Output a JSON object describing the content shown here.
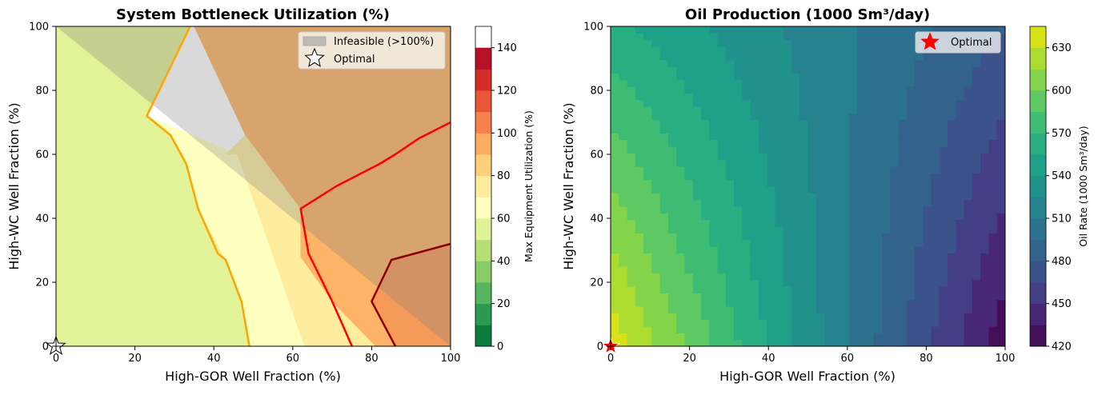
{
  "chart_data": [
    {
      "type": "contour",
      "title": "System Bottleneck Utilization (%)",
      "xlabel": "High-GOR Well Fraction (%)",
      "ylabel": "High-WC Well Fraction (%)",
      "xlim": [
        0,
        100
      ],
      "ylim": [
        0,
        100
      ],
      "xticks": [
        "0",
        "20",
        "40",
        "60",
        "80",
        "100"
      ],
      "yticks": [
        "0",
        "20",
        "40",
        "60",
        "80",
        "100"
      ],
      "colorbar": {
        "label": "Max Equipment Utilization (%)",
        "range": [
          0,
          150
        ],
        "ticks": [
          "0",
          "20",
          "40",
          "60",
          "80",
          "100",
          "120",
          "140"
        ],
        "levels": [
          0,
          10,
          20,
          30,
          40,
          50,
          60,
          70,
          80,
          90,
          100,
          110,
          120,
          130,
          140,
          150
        ],
        "colors": [
          "#0a7c3c",
          "#2a9a50",
          "#57b560",
          "#86cb67",
          "#b5df74",
          "#e0f296",
          "#ffffc0",
          "#feec9f",
          "#fed07a",
          "#fdad60",
          "#f7814c",
          "#e85637",
          "#d42d27",
          "#b7112a"
        ]
      },
      "regions": [
        {
          "level_range": [
            60,
            70
          ],
          "color": "#e2f397",
          "points": [
            [
              0,
              0
            ],
            [
              49,
              0
            ],
            [
              47,
              14
            ],
            [
              43,
              27
            ],
            [
              36,
              43
            ],
            [
              33,
              57
            ],
            [
              29,
              66
            ],
            [
              23,
              72
            ],
            [
              34,
              100
            ],
            [
              0,
              100
            ]
          ]
        },
        {
          "level_range": [
            70,
            80
          ],
          "color": "#ffffc0",
          "points": [
            [
              49,
              0
            ],
            [
              63,
              0
            ],
            [
              46,
              60
            ],
            [
              23,
              72
            ],
            [
              29,
              66
            ],
            [
              33,
              57
            ],
            [
              36,
              43
            ],
            [
              43,
              27
            ],
            [
              47,
              14
            ]
          ]
        },
        {
          "level_range": [
            80,
            90
          ],
          "color": "#feec9f",
          "points": [
            [
              63,
              0
            ],
            [
              81,
              0
            ],
            [
              70,
              14
            ],
            [
              62,
              28
            ],
            [
              62,
              43
            ],
            [
              48,
              66
            ],
            [
              43,
              60
            ],
            [
              46,
              60
            ]
          ]
        },
        {
          "level_range": [
            90,
            110
          ],
          "color": "#fdb466",
          "points": [
            [
              81,
              0
            ],
            [
              100,
              0
            ],
            [
              100,
              100
            ],
            [
              35,
              100
            ],
            [
              48,
              66
            ],
            [
              62,
              43
            ],
            [
              62,
              28
            ],
            [
              70,
              14
            ]
          ]
        },
        {
          "level_range": [
            110,
            120
          ],
          "color": "#f59a58",
          "points": [
            [
              86,
              0
            ],
            [
              100,
              0
            ],
            [
              100,
              32
            ],
            [
              92,
              29
            ],
            [
              85,
              27
            ],
            [
              80,
              14
            ]
          ]
        }
      ],
      "contour_lines": [
        {
          "level": 90,
          "color": "#ffa500",
          "points": [
            [
              34,
              100
            ],
            [
              23,
              72
            ],
            [
              29,
              66
            ],
            [
              33,
              57
            ],
            [
              36,
              43
            ],
            [
              41,
              29
            ],
            [
              43,
              27
            ],
            [
              47,
              14
            ],
            [
              49,
              0
            ]
          ]
        },
        {
          "level": 110,
          "color": "#ff0000",
          "points": [
            [
              100,
              70
            ],
            [
              92,
              65
            ],
            [
              86,
              60
            ],
            [
              82,
              57
            ],
            [
              71,
              50
            ],
            [
              62,
              43
            ],
            [
              64,
              29
            ],
            [
              70,
              14
            ],
            [
              75,
              0
            ]
          ]
        },
        {
          "level": 130,
          "color": "#8b0000",
          "points": [
            [
              100,
              32
            ],
            [
              91,
              29
            ],
            [
              85,
              27
            ],
            [
              80,
              14
            ],
            [
              86,
              0
            ]
          ]
        }
      ],
      "infeasible_region": {
        "label": "Infeasible (>100%)",
        "color": "#808080",
        "points": [
          [
            0,
            100
          ],
          [
            100,
            100
          ],
          [
            100,
            0
          ]
        ]
      },
      "optimal_point": {
        "label": "Optimal",
        "x": 0,
        "y": 0
      },
      "legend": {
        "placement": "top-right",
        "entries": [
          "Infeasible (>100%)",
          "Optimal"
        ]
      }
    },
    {
      "type": "contour",
      "title": "Oil Production (1000 Sm³/day)",
      "xlabel": "High-GOR Well Fraction (%)",
      "ylabel": "High-WC Well Fraction (%)",
      "xlim": [
        0,
        100
      ],
      "ylim": [
        0,
        100
      ],
      "xticks": [
        "0",
        "20",
        "40",
        "60",
        "80",
        "100"
      ],
      "yticks": [
        "0",
        "20",
        "40",
        "60",
        "80",
        "100"
      ],
      "colorbar": {
        "label": "Oil Rate (1000 Sm³/day)",
        "range": [
          420,
          645
        ],
        "ticks": [
          "420",
          "450",
          "480",
          "510",
          "540",
          "570",
          "600",
          "630"
        ],
        "levels": [
          420,
          435,
          450,
          465,
          480,
          495,
          510,
          525,
          540,
          555,
          570,
          585,
          600,
          615,
          630,
          645
        ],
        "colors": [
          "#440f58",
          "#482777",
          "#433e85",
          "#3b528b",
          "#33638d",
          "#2c728e",
          "#26828e",
          "#21918c",
          "#1fa088",
          "#28ae80",
          "#3fbc73",
          "#5ec962",
          "#84d44b",
          "#addc30",
          "#d8e219",
          "#e4e419"
        ]
      },
      "value_field": {
        "description_free": true,
        "corner_values": {
          "x0_y0": 640,
          "x100_y0": 425,
          "x0_y100": 560,
          "x100_y100": 480
        }
      },
      "optimal_point": {
        "label": "Optimal",
        "x": 0,
        "y": 0
      },
      "legend": {
        "placement": "top-right",
        "entries": [
          "Optimal"
        ]
      }
    }
  ]
}
